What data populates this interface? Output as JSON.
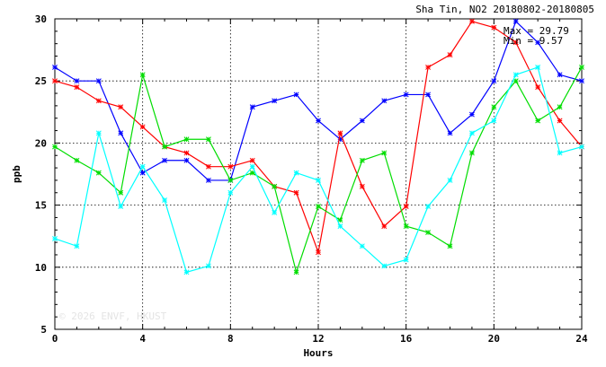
{
  "chart_data": {
    "type": "line",
    "title": "Sha Tin, NO2 20180802-20180805",
    "xlabel": "Hours",
    "ylabel": "ppb",
    "xlim": [
      0,
      24
    ],
    "ylim": [
      5,
      30
    ],
    "xticks": [
      0,
      4,
      8,
      12,
      16,
      20,
      24
    ],
    "yticks": [
      5,
      10,
      15,
      20,
      25,
      30
    ],
    "grid": true,
    "x": [
      0,
      1,
      2,
      3,
      4,
      5,
      6,
      7,
      8,
      9,
      10,
      11,
      12,
      13,
      14,
      15,
      16,
      17,
      18,
      19,
      20,
      21,
      22,
      23,
      24
    ],
    "series": [
      {
        "color": "#0000ff",
        "values": [
          26.1,
          25.0,
          25.0,
          20.8,
          17.6,
          18.6,
          18.6,
          17.0,
          17.0,
          22.9,
          23.4,
          23.9,
          21.8,
          20.3,
          21.8,
          23.4,
          23.9,
          23.9,
          20.8,
          22.3,
          25.0,
          29.8,
          28.1,
          25.5,
          25.0
        ]
      },
      {
        "color": "#ff0000",
        "values": [
          25.0,
          24.5,
          23.4,
          22.9,
          21.3,
          19.7,
          19.2,
          18.1,
          18.1,
          18.6,
          16.5,
          16.0,
          11.2,
          20.8,
          16.5,
          13.3,
          14.9,
          26.1,
          27.1,
          29.8,
          29.3,
          28.1,
          24.5,
          21.8,
          19.7
        ]
      },
      {
        "color": "#00dd00",
        "values": [
          19.7,
          18.6,
          17.6,
          16.0,
          25.5,
          19.7,
          20.3,
          20.3,
          17.0,
          17.6,
          16.5,
          9.6,
          14.9,
          13.8,
          18.6,
          19.2,
          13.3,
          12.8,
          11.7,
          19.2,
          22.9,
          25.0,
          21.8,
          22.9,
          26.1
        ]
      },
      {
        "color": "#00ffff",
        "values": [
          12.3,
          11.7,
          20.8,
          14.9,
          18.1,
          15.4,
          9.6,
          10.1,
          16.0,
          18.1,
          14.4,
          17.6,
          17.0,
          13.3,
          11.7,
          10.1,
          10.6,
          14.9,
          17.0,
          20.8,
          21.8,
          25.5,
          26.1,
          19.2,
          19.7
        ]
      }
    ],
    "annotations": [
      "Max = 29.79",
      "Min = 9.57"
    ],
    "watermark": "© 2026 ENVF, HKUST"
  }
}
